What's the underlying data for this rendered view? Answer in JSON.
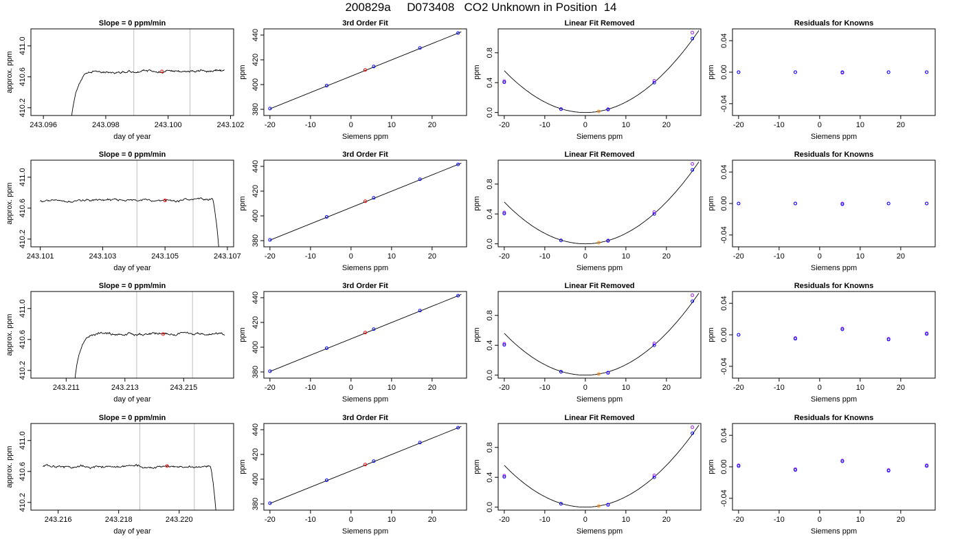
{
  "page": {
    "title": "200829a     D073408   CO2 Unknown in Position  14"
  },
  "colors": {
    "trace": "#000000",
    "known": "#0000ff",
    "unknown": "#ff0000",
    "known_alt": "#a020f0",
    "unknown_fit": "#ff8c00",
    "marker_line": "#bebebe"
  },
  "chart_data": [
    {
      "type": "line",
      "row": 0,
      "col": 0,
      "title": "Slope =  0  ppm/min",
      "xlabel": "day of year",
      "ylabel": "approx. ppm",
      "xlim": [
        243.0956,
        243.1021
      ],
      "ylim": [
        410.1,
        411.22
      ],
      "xticks": [
        243.096,
        243.098,
        243.1,
        243.102
      ],
      "xtick_labels": [
        "243.096",
        "243.098",
        "243.100",
        "243.102"
      ],
      "yticks": [
        410.2,
        410.6,
        411.0
      ],
      "ytick_labels": [
        "410.2",
        "410.6",
        "411.0"
      ],
      "vlines": [
        243.0989,
        243.1007
      ],
      "trace": {
        "x_start": 243.0969,
        "x_end": 243.1018,
        "rise": true,
        "drop": false,
        "start_value": 410.08,
        "plateau": 410.67
      },
      "unknown_point": {
        "x": 243.0998,
        "y": 410.67
      }
    },
    {
      "type": "scatter",
      "row": 0,
      "col": 1,
      "title": "3rd Order Fit",
      "xlabel": "Siemens ppm",
      "ylabel": "ppm",
      "xlim": [
        -21.5,
        28.5
      ],
      "ylim": [
        375,
        445
      ],
      "xticks": [
        -20,
        -10,
        0,
        10,
        20
      ],
      "xtick_labels": [
        "-20",
        "-10",
        "0",
        "10",
        "20"
      ],
      "yticks": [
        380,
        400,
        420,
        440
      ],
      "ytick_labels": [
        "380",
        "400",
        "420",
        "440"
      ],
      "fit_line": {
        "x": [
          -20,
          27.2
        ],
        "y": [
          380.4,
          442.6
        ]
      },
      "knowns": {
        "x": [
          -20,
          -6,
          5.6,
          17,
          26.4
        ],
        "y": [
          380.6,
          399.2,
          414.6,
          429.6,
          441.6
        ]
      },
      "unknown": {
        "x": 3.5,
        "y": 411.8
      }
    },
    {
      "type": "scatter",
      "row": 0,
      "col": 2,
      "title": "Linear Fit Removed",
      "xlabel": "Siemens ppm",
      "ylabel": "ppm",
      "xlim": [
        -21.5,
        28.5
      ],
      "ylim": [
        -0.04,
        1.12
      ],
      "xticks": [
        -20,
        -10,
        0,
        10,
        20
      ],
      "xtick_labels": [
        "-20",
        "-10",
        "0",
        "10",
        "20"
      ],
      "yticks": [
        0.0,
        0.4,
        0.8
      ],
      "ytick_labels": [
        "0.0",
        "0.4",
        "0.8"
      ],
      "curve": {
        "a": 0.0014,
        "b": 0,
        "c": 0
      },
      "knowns": {
        "x": [
          -20,
          -6,
          5.6,
          17,
          26.4
        ],
        "y": [
          0.405,
          0.045,
          0.04,
          0.4,
          0.99
        ]
      },
      "knowns_alt": {
        "x": [
          -20,
          -6,
          5.6,
          17,
          26.4
        ],
        "y": [
          0.42,
          0.045,
          0.045,
          0.425,
          1.07
        ]
      },
      "unknown": {
        "x": 3.3,
        "y": 0.015
      }
    },
    {
      "type": "scatter",
      "row": 0,
      "col": 3,
      "title": "Residuals for Knowns",
      "xlabel": "Siemens ppm",
      "ylabel": "ppm",
      "xlim": [
        -21.5,
        28.5
      ],
      "ylim": [
        -0.055,
        0.055
      ],
      "xticks": [
        -20,
        -10,
        0,
        10,
        20
      ],
      "xtick_labels": [
        "-20",
        "-10",
        "0",
        "10",
        "20"
      ],
      "yticks": [
        -0.04,
        0.0,
        0.04
      ],
      "ytick_labels": [
        "-0.04",
        "0.00",
        "0.04"
      ],
      "knowns": {
        "x": [
          -20,
          -6,
          5.6,
          17,
          26.4
        ],
        "y": [
          0,
          0,
          0,
          0,
          0
        ]
      },
      "knowns_alt": {
        "x": [
          -20,
          -6,
          5.6,
          17,
          26.4
        ],
        "y": [
          0,
          0,
          -0.0008,
          0,
          0
        ]
      }
    },
    {
      "type": "line",
      "row": 1,
      "col": 0,
      "title": "Slope =  0  ppm/min",
      "xlabel": "day of year",
      "ylabel": "approx. ppm",
      "xlim": [
        243.1007,
        243.1072
      ],
      "ylim": [
        410.1,
        411.22
      ],
      "xticks": [
        243.101,
        243.103,
        243.105,
        243.107
      ],
      "xtick_labels": [
        "243.101",
        "243.103",
        "243.105",
        "243.107"
      ],
      "yticks": [
        410.2,
        410.6,
        411.0
      ],
      "ytick_labels": [
        "410.2",
        "410.6",
        "411.0"
      ],
      "vlines": [
        243.1041,
        243.1059
      ],
      "trace": {
        "x_start": 243.101,
        "x_end": 243.1068,
        "rise": false,
        "drop": true,
        "start_value": 410.7,
        "plateau": 410.7
      },
      "unknown_point": {
        "x": 243.105,
        "y": 410.7
      }
    },
    {
      "type": "scatter",
      "row": 1,
      "col": 1,
      "title": "3rd Order Fit",
      "xlabel": "Siemens ppm",
      "ylabel": "ppm",
      "xlim": [
        -21.5,
        28.5
      ],
      "ylim": [
        375,
        445
      ],
      "xticks": [
        -20,
        -10,
        0,
        10,
        20
      ],
      "xtick_labels": [
        "-20",
        "-10",
        "0",
        "10",
        "20"
      ],
      "yticks": [
        380,
        400,
        420,
        440
      ],
      "ytick_labels": [
        "380",
        "400",
        "420",
        "440"
      ],
      "fit_line": {
        "x": [
          -20,
          27.2
        ],
        "y": [
          380.4,
          442.6
        ]
      },
      "knowns": {
        "x": [
          -20,
          -6,
          5.6,
          17,
          26.4
        ],
        "y": [
          380.6,
          399.2,
          414.6,
          429.6,
          441.6
        ]
      },
      "unknown": {
        "x": 3.5,
        "y": 411.8
      }
    },
    {
      "type": "scatter",
      "row": 1,
      "col": 2,
      "title": "Linear Fit Removed",
      "xlabel": "Siemens ppm",
      "ylabel": "ppm",
      "xlim": [
        -21.5,
        28.5
      ],
      "ylim": [
        -0.04,
        1.12
      ],
      "xticks": [
        -20,
        -10,
        0,
        10,
        20
      ],
      "xtick_labels": [
        "-20",
        "-10",
        "0",
        "10",
        "20"
      ],
      "yticks": [
        0.0,
        0.4,
        0.8
      ],
      "ytick_labels": [
        "0.0",
        "0.4",
        "0.8"
      ],
      "curve": {
        "a": 0.0014,
        "b": 0,
        "c": 0
      },
      "knowns": {
        "x": [
          -20,
          -6,
          5.6,
          17,
          26.4
        ],
        "y": [
          0.405,
          0.045,
          0.04,
          0.4,
          0.99
        ]
      },
      "knowns_alt": {
        "x": [
          -20,
          -6,
          5.6,
          17,
          26.4
        ],
        "y": [
          0.42,
          0.045,
          0.045,
          0.425,
          1.07
        ]
      },
      "unknown": {
        "x": 3.3,
        "y": 0.015
      }
    },
    {
      "type": "scatter",
      "row": 1,
      "col": 3,
      "title": "Residuals for Knowns",
      "xlabel": "Siemens ppm",
      "ylabel": "ppm",
      "xlim": [
        -21.5,
        28.5
      ],
      "ylim": [
        -0.055,
        0.055
      ],
      "xticks": [
        -20,
        -10,
        0,
        10,
        20
      ],
      "xtick_labels": [
        "-20",
        "-10",
        "0",
        "10",
        "20"
      ],
      "yticks": [
        -0.04,
        0.0,
        0.04
      ],
      "ytick_labels": [
        "-0.04",
        "0.00",
        "0.04"
      ],
      "knowns": {
        "x": [
          -20,
          -6,
          5.6,
          17,
          26.4
        ],
        "y": [
          0,
          0,
          -0.001,
          0,
          0
        ]
      },
      "knowns_alt": {
        "x": [
          -20,
          -6,
          5.6,
          17,
          26.4
        ],
        "y": [
          0,
          0,
          0,
          0,
          0
        ]
      }
    },
    {
      "type": "line",
      "row": 2,
      "col": 0,
      "title": "Slope =  0  ppm/min",
      "xlabel": "day of year",
      "ylabel": "approx. ppm",
      "xlim": [
        243.2098,
        243.2167
      ],
      "ylim": [
        410.1,
        411.22
      ],
      "xticks": [
        243.211,
        243.213,
        243.215
      ],
      "xtick_labels": [
        "243.211",
        "243.213",
        "243.215"
      ],
      "yticks": [
        410.2,
        410.6,
        411.0
      ],
      "ytick_labels": [
        "410.2",
        "410.6",
        "411.0"
      ],
      "vlines": [
        243.2134,
        243.2153
      ],
      "trace": {
        "x_start": 243.2113,
        "x_end": 243.2164,
        "rise": true,
        "drop": false,
        "start_value": 410.1,
        "plateau": 410.67
      },
      "unknown_point": {
        "x": 243.2143,
        "y": 410.67
      }
    },
    {
      "type": "scatter",
      "row": 2,
      "col": 1,
      "title": "3rd Order Fit",
      "xlabel": "Siemens ppm",
      "ylabel": "ppm",
      "xlim": [
        -21.5,
        28.5
      ],
      "ylim": [
        375,
        445
      ],
      "xticks": [
        -20,
        -10,
        0,
        10,
        20
      ],
      "xtick_labels": [
        "-20",
        "-10",
        "0",
        "10",
        "20"
      ],
      "yticks": [
        380,
        400,
        420,
        440
      ],
      "ytick_labels": [
        "380",
        "400",
        "420",
        "440"
      ],
      "fit_line": {
        "x": [
          -20,
          27.2
        ],
        "y": [
          380.4,
          442.6
        ]
      },
      "knowns": {
        "x": [
          -20,
          -6,
          5.6,
          17,
          26.4
        ],
        "y": [
          380.6,
          399.2,
          414.6,
          429.6,
          441.6
        ]
      },
      "unknown": {
        "x": 3.5,
        "y": 411.8
      }
    },
    {
      "type": "scatter",
      "row": 2,
      "col": 2,
      "title": "Linear Fit Removed",
      "xlabel": "Siemens ppm",
      "ylabel": "ppm",
      "xlim": [
        -21.5,
        28.5
      ],
      "ylim": [
        -0.04,
        1.12
      ],
      "xticks": [
        -20,
        -10,
        0,
        10,
        20
      ],
      "xtick_labels": [
        "-20",
        "-10",
        "0",
        "10",
        "20"
      ],
      "yticks": [
        0.0,
        0.4,
        0.8
      ],
      "ytick_labels": [
        "0.0",
        "0.4",
        "0.8"
      ],
      "curve": {
        "a": 0.0014,
        "b": 0,
        "c": 0
      },
      "knowns": {
        "x": [
          -20,
          -6,
          5.6,
          17,
          26.4
        ],
        "y": [
          0.405,
          0.045,
          0.03,
          0.4,
          0.99
        ]
      },
      "knowns_alt": {
        "x": [
          -20,
          -6,
          5.6,
          17,
          26.4
        ],
        "y": [
          0.42,
          0.045,
          0.035,
          0.425,
          1.07
        ]
      },
      "unknown": {
        "x": 3.3,
        "y": 0.015
      }
    },
    {
      "type": "scatter",
      "row": 2,
      "col": 3,
      "title": "Residuals for Knowns",
      "xlabel": "Siemens ppm",
      "ylabel": "ppm",
      "xlim": [
        -21.5,
        28.5
      ],
      "ylim": [
        -0.055,
        0.055
      ],
      "xticks": [
        -20,
        -10,
        0,
        10,
        20
      ],
      "xtick_labels": [
        "-20",
        "-10",
        "0",
        "10",
        "20"
      ],
      "yticks": [
        -0.04,
        0.0,
        0.04
      ],
      "ytick_labels": [
        "-0.04",
        "0.00",
        "0.04"
      ],
      "knowns": {
        "x": [
          -20,
          -6,
          5.6,
          17,
          26.4
        ],
        "y": [
          0.0,
          -0.005,
          0.007,
          -0.006,
          0.001
        ]
      },
      "knowns_alt": {
        "x": [
          -20,
          -6,
          5.6,
          17,
          26.4
        ],
        "y": [
          0.0,
          -0.004,
          0.008,
          -0.005,
          0.002
        ]
      }
    },
    {
      "type": "line",
      "row": 3,
      "col": 0,
      "title": "Slope =  0  ppm/min",
      "xlabel": "day of year",
      "ylabel": "approx. ppm",
      "xlim": [
        243.2151,
        243.2218
      ],
      "ylim": [
        410.1,
        411.22
      ],
      "xticks": [
        243.216,
        243.218,
        243.22
      ],
      "xtick_labels": [
        "243.216",
        "243.218",
        "243.220"
      ],
      "yticks": [
        410.2,
        410.6,
        411.0
      ],
      "ytick_labels": [
        "410.2",
        "410.6",
        "411.0"
      ],
      "vlines": [
        243.2187,
        243.2205
      ],
      "trace": {
        "x_start": 243.2155,
        "x_end": 243.2213,
        "rise": false,
        "drop": true,
        "start_value": 410.67,
        "plateau": 410.67
      },
      "unknown_point": {
        "x": 243.2196,
        "y": 410.67
      }
    },
    {
      "type": "scatter",
      "row": 3,
      "col": 1,
      "title": "3rd Order Fit",
      "xlabel": "Siemens ppm",
      "ylabel": "ppm",
      "xlim": [
        -21.5,
        28.5
      ],
      "ylim": [
        375,
        445
      ],
      "xticks": [
        -20,
        -10,
        0,
        10,
        20
      ],
      "xtick_labels": [
        "-20",
        "-10",
        "0",
        "10",
        "20"
      ],
      "yticks": [
        380,
        400,
        420,
        440
      ],
      "ytick_labels": [
        "380",
        "400",
        "420",
        "440"
      ],
      "fit_line": {
        "x": [
          -20,
          27.2
        ],
        "y": [
          380.4,
          442.6
        ]
      },
      "knowns": {
        "x": [
          -20,
          -6,
          5.6,
          17,
          26.4
        ],
        "y": [
          380.6,
          399.2,
          414.6,
          429.6,
          441.6
        ]
      },
      "unknown": {
        "x": 3.5,
        "y": 411.8
      }
    },
    {
      "type": "scatter",
      "row": 3,
      "col": 2,
      "title": "Linear Fit Removed",
      "xlabel": "Siemens ppm",
      "ylabel": "ppm",
      "xlim": [
        -21.5,
        28.5
      ],
      "ylim": [
        -0.04,
        1.12
      ],
      "xticks": [
        -20,
        -10,
        0,
        10,
        20
      ],
      "xtick_labels": [
        "-20",
        "-10",
        "0",
        "10",
        "20"
      ],
      "yticks": [
        0.0,
        0.4,
        0.8
      ],
      "ytick_labels": [
        "0.0",
        "0.4",
        "0.8"
      ],
      "curve": {
        "a": 0.0014,
        "b": 0,
        "c": 0
      },
      "knowns": {
        "x": [
          -20,
          -6,
          5.6,
          17,
          26.4
        ],
        "y": [
          0.405,
          0.045,
          0.03,
          0.4,
          0.99
        ]
      },
      "knowns_alt": {
        "x": [
          -20,
          -6,
          5.6,
          17,
          26.4
        ],
        "y": [
          0.42,
          0.045,
          0.035,
          0.425,
          1.07
        ]
      },
      "unknown": {
        "x": 3.3,
        "y": 0.015
      }
    },
    {
      "type": "scatter",
      "row": 3,
      "col": 3,
      "title": "Residuals for Knowns",
      "xlabel": "Siemens ppm",
      "ylabel": "ppm",
      "xlim": [
        -21.5,
        28.5
      ],
      "ylim": [
        -0.055,
        0.055
      ],
      "xticks": [
        -20,
        -10,
        0,
        10,
        20
      ],
      "xtick_labels": [
        "-20",
        "-10",
        "0",
        "10",
        "20"
      ],
      "yticks": [
        -0.04,
        0.0,
        0.04
      ],
      "ytick_labels": [
        "-0.04",
        "0.00",
        "0.04"
      ],
      "knowns": {
        "x": [
          -20,
          -6,
          5.6,
          17,
          26.4
        ],
        "y": [
          0.001,
          -0.004,
          0.007,
          -0.005,
          0.001
        ]
      },
      "knowns_alt": {
        "x": [
          -20,
          -6,
          5.6,
          17,
          26.4
        ],
        "y": [
          0.002,
          -0.003,
          0.008,
          -0.004,
          0.002
        ]
      }
    }
  ]
}
